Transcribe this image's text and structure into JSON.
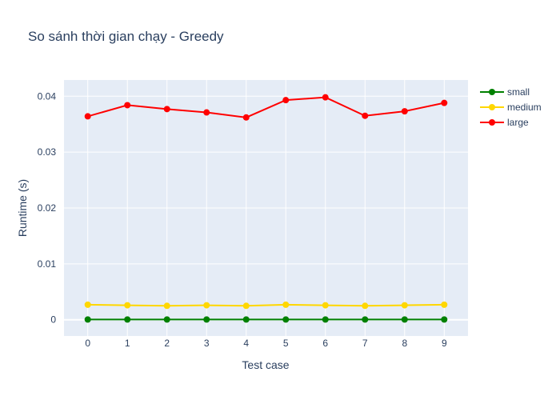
{
  "chart_data": {
    "type": "line",
    "title": "So sánh thời gian chạy - Greedy",
    "xlabel": "Test case",
    "ylabel": "Runtime (s)",
    "x": [
      0,
      1,
      2,
      3,
      4,
      5,
      6,
      7,
      8,
      9
    ],
    "x_tick_labels": [
      "0",
      "1",
      "2",
      "3",
      "4",
      "5",
      "6",
      "7",
      "8",
      "9"
    ],
    "y_tick_values": [
      0,
      0.01,
      0.02,
      0.03,
      0.04
    ],
    "y_tick_labels": [
      "0",
      "0.01",
      "0.02",
      "0.03",
      "0.04"
    ],
    "xlim": [
      -0.6,
      9.6
    ],
    "ylim": [
      -0.0029,
      0.0429
    ],
    "grid": true,
    "legend_position": "top-right, outside plot",
    "background_color": "#e5ecf6",
    "series": [
      {
        "name": "small",
        "color": "#008000",
        "values": [
          5e-05,
          5e-05,
          5e-05,
          5e-05,
          5e-05,
          5e-05,
          5e-05,
          5e-05,
          5e-05,
          5e-05
        ]
      },
      {
        "name": "medium",
        "color": "#ffd700",
        "values": [
          0.0027,
          0.0026,
          0.0025,
          0.0026,
          0.0025,
          0.0027,
          0.0026,
          0.0025,
          0.0026,
          0.0027
        ]
      },
      {
        "name": "large",
        "color": "#ff0000",
        "values": [
          0.0364,
          0.0384,
          0.0377,
          0.0371,
          0.0362,
          0.0393,
          0.0398,
          0.0365,
          0.0373,
          0.0388
        ]
      }
    ]
  }
}
